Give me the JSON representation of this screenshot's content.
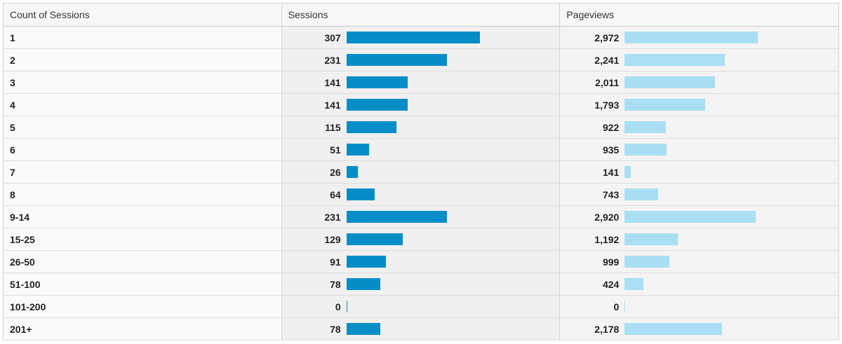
{
  "columns": {
    "dimension": "Count of Sessions",
    "sessions": "Sessions",
    "pageviews": "Pageviews"
  },
  "colors": {
    "sessions_bar": "#058dc7",
    "pageviews_bar": "#aadff3"
  },
  "chart_data": {
    "type": "table",
    "columns": [
      "Count of Sessions",
      "Sessions",
      "Pageviews"
    ],
    "categories": [
      "1",
      "2",
      "3",
      "4",
      "5",
      "6",
      "7",
      "8",
      "9-14",
      "15-25",
      "26-50",
      "51-100",
      "101-200",
      "201+"
    ],
    "series": [
      {
        "name": "Sessions",
        "values": [
          307,
          231,
          141,
          141,
          115,
          51,
          26,
          64,
          231,
          129,
          91,
          78,
          0,
          78
        ],
        "labels": [
          "307",
          "231",
          "141",
          "141",
          "115",
          "51",
          "26",
          "64",
          "231",
          "129",
          "91",
          "78",
          "0",
          "78"
        ]
      },
      {
        "name": "Pageviews",
        "values": [
          2972,
          2241,
          2011,
          1793,
          922,
          935,
          141,
          743,
          2920,
          1192,
          999,
          424,
          0,
          2178
        ],
        "labels": [
          "2,972",
          "2,241",
          "2,011",
          "1,793",
          "922",
          "935",
          "141",
          "743",
          "2,920",
          "1,192",
          "999",
          "424",
          "0",
          "2,178"
        ]
      }
    ]
  }
}
